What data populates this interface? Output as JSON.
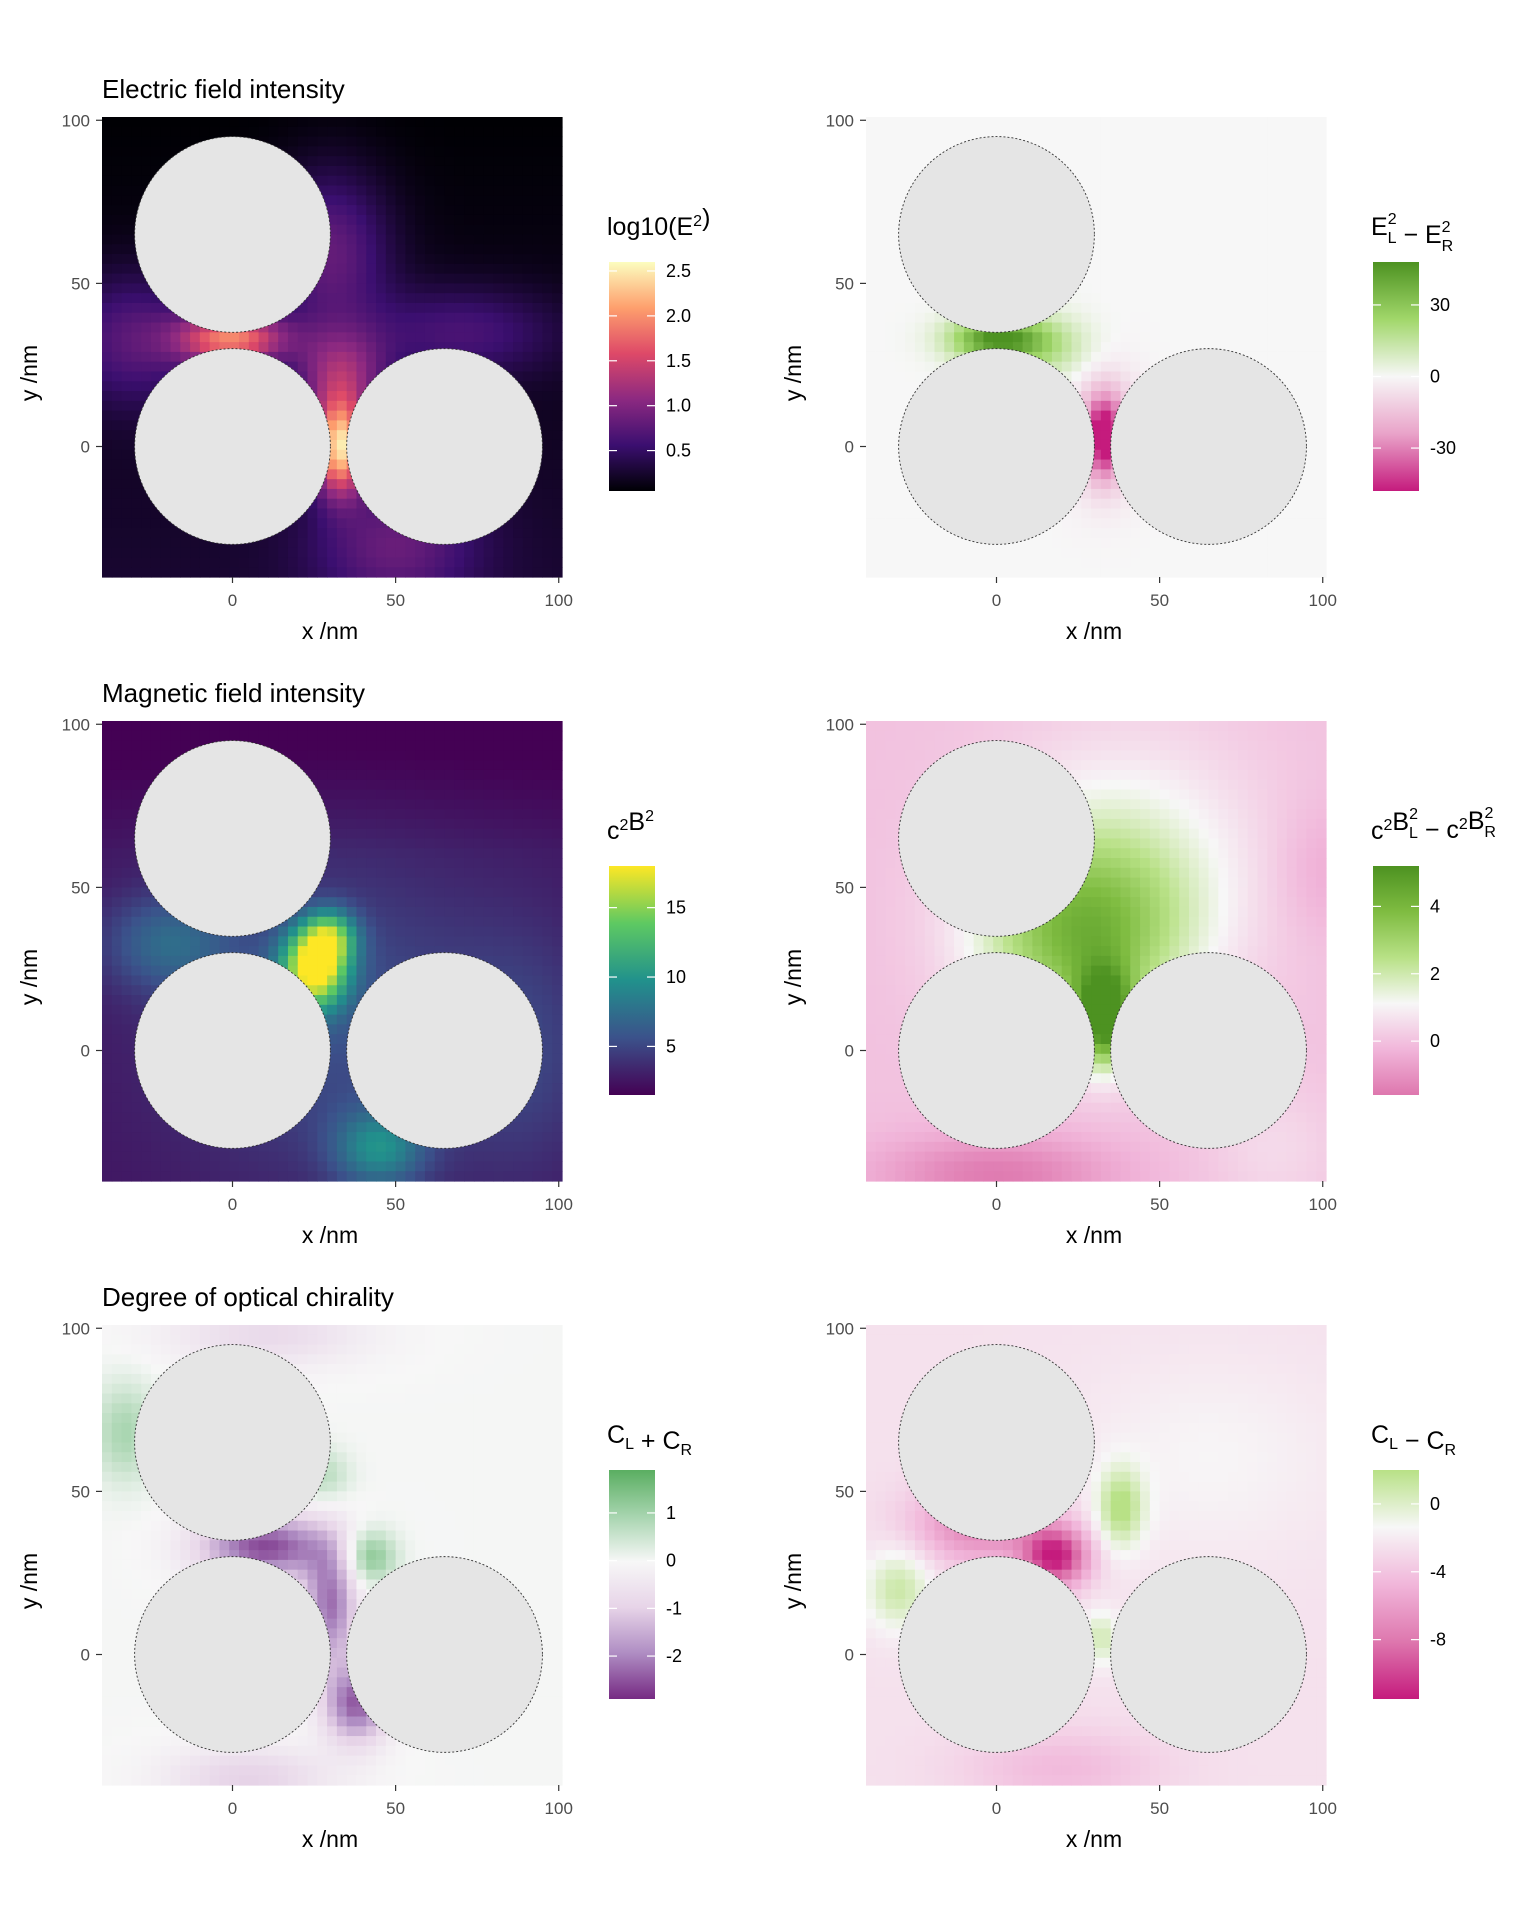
{
  "chart_data": [
    {
      "type": "heatmap",
      "title": "Electric field intensity",
      "xlabel": "x /nm",
      "ylabel": "y /nm",
      "xlim": [
        -40,
        101
      ],
      "ylim": [
        -40,
        101
      ],
      "x_ticks": [
        "0",
        "50",
        "100"
      ],
      "y_ticks": [
        "0",
        "50",
        "100"
      ],
      "x_tick_values": [
        0,
        50,
        100
      ],
      "y_tick_values": [
        0,
        50,
        100
      ],
      "legend_title": "log10(E2)",
      "legend_ticks": [
        "2.5",
        "2.0",
        "1.5",
        "1.0",
        "0.5"
      ],
      "legend_tick_values": [
        2.5,
        2.0,
        1.5,
        1.0,
        0.5
      ],
      "value_range": [
        0.05,
        2.6
      ],
      "colormap": [
        "#000004",
        "#3b0f70",
        "#8c2981",
        "#de4968",
        "#fe9f6d",
        "#fcfdbf"
      ],
      "particles": [
        {
          "cx": 0,
          "cy": 65,
          "r": 30
        },
        {
          "cx": 0,
          "cy": 0,
          "r": 30
        },
        {
          "cx": 65,
          "cy": 0,
          "r": 30
        }
      ],
      "particle_color": "#e5e5e5"
    },
    {
      "type": "heatmap",
      "title": "",
      "xlabel": "x /nm",
      "ylabel": "y /nm",
      "xlim": [
        -40,
        101
      ],
      "ylim": [
        -40,
        101
      ],
      "x_ticks": [
        "0",
        "50",
        "100"
      ],
      "y_ticks": [
        "0",
        "50",
        "100"
      ],
      "x_tick_values": [
        0,
        50,
        100
      ],
      "y_tick_values": [
        0,
        50,
        100
      ],
      "legend_title": "EL2 - ER2",
      "legend_ticks": [
        "30",
        "0",
        "-30"
      ],
      "legend_tick_values": [
        30,
        0,
        -30
      ],
      "value_range": [
        -48,
        48
      ],
      "colormap": [
        "#c51b7d",
        "#e9a3c9",
        "#f7f7f7",
        "#a1d76a",
        "#4d9221"
      ],
      "particles": [
        {
          "cx": 0,
          "cy": 65,
          "r": 30
        },
        {
          "cx": 0,
          "cy": 0,
          "r": 30
        },
        {
          "cx": 65,
          "cy": 0,
          "r": 30
        }
      ],
      "particle_color": "#e5e5e5"
    },
    {
      "type": "heatmap",
      "title": "Magnetic field intensity",
      "xlabel": "x /nm",
      "ylabel": "y /nm",
      "xlim": [
        -40,
        101
      ],
      "ylim": [
        -40,
        101
      ],
      "x_ticks": [
        "0",
        "50",
        "100"
      ],
      "y_ticks": [
        "0",
        "50",
        "100"
      ],
      "x_tick_values": [
        0,
        50,
        100
      ],
      "y_tick_values": [
        0,
        50,
        100
      ],
      "legend_title": "c2B2",
      "legend_ticks": [
        "15",
        "10",
        "5"
      ],
      "legend_tick_values": [
        15,
        10,
        5
      ],
      "value_range": [
        1.5,
        18
      ],
      "colormap": [
        "#440154",
        "#3b528b",
        "#21918c",
        "#5ec962",
        "#fde725"
      ],
      "particles": [
        {
          "cx": 0,
          "cy": 65,
          "r": 30
        },
        {
          "cx": 0,
          "cy": 0,
          "r": 30
        },
        {
          "cx": 65,
          "cy": 0,
          "r": 30
        }
      ],
      "particle_color": "#e5e5e5"
    },
    {
      "type": "heatmap",
      "title": "",
      "xlabel": "x /nm",
      "ylabel": "y /nm",
      "xlim": [
        -40,
        101
      ],
      "ylim": [
        -40,
        101
      ],
      "x_ticks": [
        "0",
        "50",
        "100"
      ],
      "y_ticks": [
        "0",
        "50",
        "100"
      ],
      "x_tick_values": [
        0,
        50,
        100
      ],
      "y_tick_values": [
        0,
        50,
        100
      ],
      "legend_title": "c2BL2 - c2BR2",
      "legend_ticks": [
        "4",
        "2",
        "0"
      ],
      "legend_tick_values": [
        4,
        2,
        0
      ],
      "value_range": [
        -1.6,
        5.2
      ],
      "colormap": [
        "#de77ae",
        "#f1b6da",
        "#f7f7f7",
        "#b8e186",
        "#7fbc41",
        "#4d9221"
      ],
      "particles": [
        {
          "cx": 0,
          "cy": 65,
          "r": 30
        },
        {
          "cx": 0,
          "cy": 0,
          "r": 30
        },
        {
          "cx": 65,
          "cy": 0,
          "r": 30
        }
      ],
      "particle_color": "#e5e5e5"
    },
    {
      "type": "heatmap",
      "title": "Degree of optical chirality",
      "xlabel": "x /nm",
      "ylabel": "y /nm",
      "xlim": [
        -40,
        101
      ],
      "ylim": [
        -40,
        101
      ],
      "x_ticks": [
        "0",
        "50",
        "100"
      ],
      "y_ticks": [
        "0",
        "50",
        "100"
      ],
      "x_tick_values": [
        0,
        50,
        100
      ],
      "y_tick_values": [
        0,
        50,
        100
      ],
      "legend_title": "CL + CR",
      "legend_ticks": [
        "1",
        "0",
        "-1",
        "-2"
      ],
      "legend_tick_values": [
        1,
        0,
        -1,
        -2
      ],
      "value_range": [
        -2.9,
        1.9
      ],
      "colormap": [
        "#762a83",
        "#af8dc3",
        "#e7d4e8",
        "#f7f7f7",
        "#a6d4ae",
        "#5aae61"
      ],
      "particles": [
        {
          "cx": 0,
          "cy": 65,
          "r": 30
        },
        {
          "cx": 0,
          "cy": 0,
          "r": 30
        },
        {
          "cx": 65,
          "cy": 0,
          "r": 30
        }
      ],
      "particle_color": "#e5e5e5"
    },
    {
      "type": "heatmap",
      "title": "",
      "xlabel": "x /nm",
      "ylabel": "y /nm",
      "xlim": [
        -40,
        101
      ],
      "ylim": [
        -40,
        101
      ],
      "x_ticks": [
        "0",
        "50",
        "100"
      ],
      "y_ticks": [
        "0",
        "50",
        "100"
      ],
      "x_tick_values": [
        0,
        50,
        100
      ],
      "y_tick_values": [
        0,
        50,
        100
      ],
      "legend_title": "CL - CR",
      "legend_ticks": [
        "0",
        "-4",
        "-8"
      ],
      "legend_tick_values": [
        0,
        -4,
        -8
      ],
      "value_range": [
        -11.5,
        2
      ],
      "colormap": [
        "#c51b7d",
        "#de77ae",
        "#f1b6da",
        "#f7f7f7",
        "#b8e186"
      ],
      "particles": [
        {
          "cx": 0,
          "cy": 65,
          "r": 30
        },
        {
          "cx": 0,
          "cy": 0,
          "r": 30
        },
        {
          "cx": 65,
          "cy": 0,
          "r": 30
        }
      ],
      "particle_color": "#e5e5e5"
    }
  ]
}
